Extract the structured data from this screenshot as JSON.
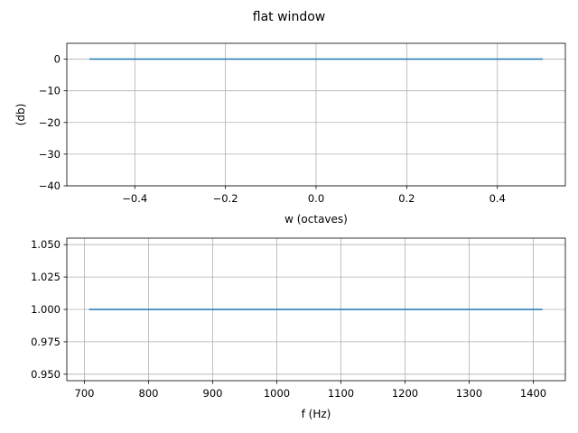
{
  "figure": {
    "title": "flat window"
  },
  "chart_data": [
    {
      "type": "line",
      "title": "",
      "xlabel": "w (octaves)",
      "ylabel": "(db)",
      "xlim": [
        -0.55,
        0.55
      ],
      "ylim": [
        -40,
        5
      ],
      "xticks": [
        -0.4,
        -0.2,
        0.0,
        0.2,
        0.4
      ],
      "xtick_labels": [
        "−0.4",
        "−0.2",
        "0.0",
        "0.2",
        "0.4"
      ],
      "yticks": [
        0,
        -10,
        -20,
        -30,
        -40
      ],
      "ytick_labels": [
        "0",
        "−10",
        "−20",
        "−30",
        "−40"
      ],
      "grid": true,
      "series": [
        {
          "x": [
            -0.5,
            0.5
          ],
          "y": [
            0,
            0
          ],
          "color": "#1f77b4"
        }
      ]
    },
    {
      "type": "line",
      "title": "",
      "xlabel": "f (Hz)",
      "ylabel": "",
      "xlim": [
        672.5,
        1450
      ],
      "ylim": [
        0.945,
        1.055
      ],
      "xticks": [
        700,
        800,
        900,
        1000,
        1100,
        1200,
        1300,
        1400
      ],
      "xtick_labels": [
        "700",
        "800",
        "900",
        "1000",
        "1100",
        "1200",
        "1300",
        "1400"
      ],
      "yticks": [
        1.05,
        1.025,
        1.0,
        0.975,
        0.95
      ],
      "ytick_labels": [
        "1.050",
        "1.025",
        "1.000",
        "0.975",
        "0.950"
      ],
      "grid": true,
      "series": [
        {
          "x": [
            707.1,
            1414.2
          ],
          "y": [
            1,
            1
          ],
          "color": "#1f77b4"
        }
      ]
    }
  ]
}
